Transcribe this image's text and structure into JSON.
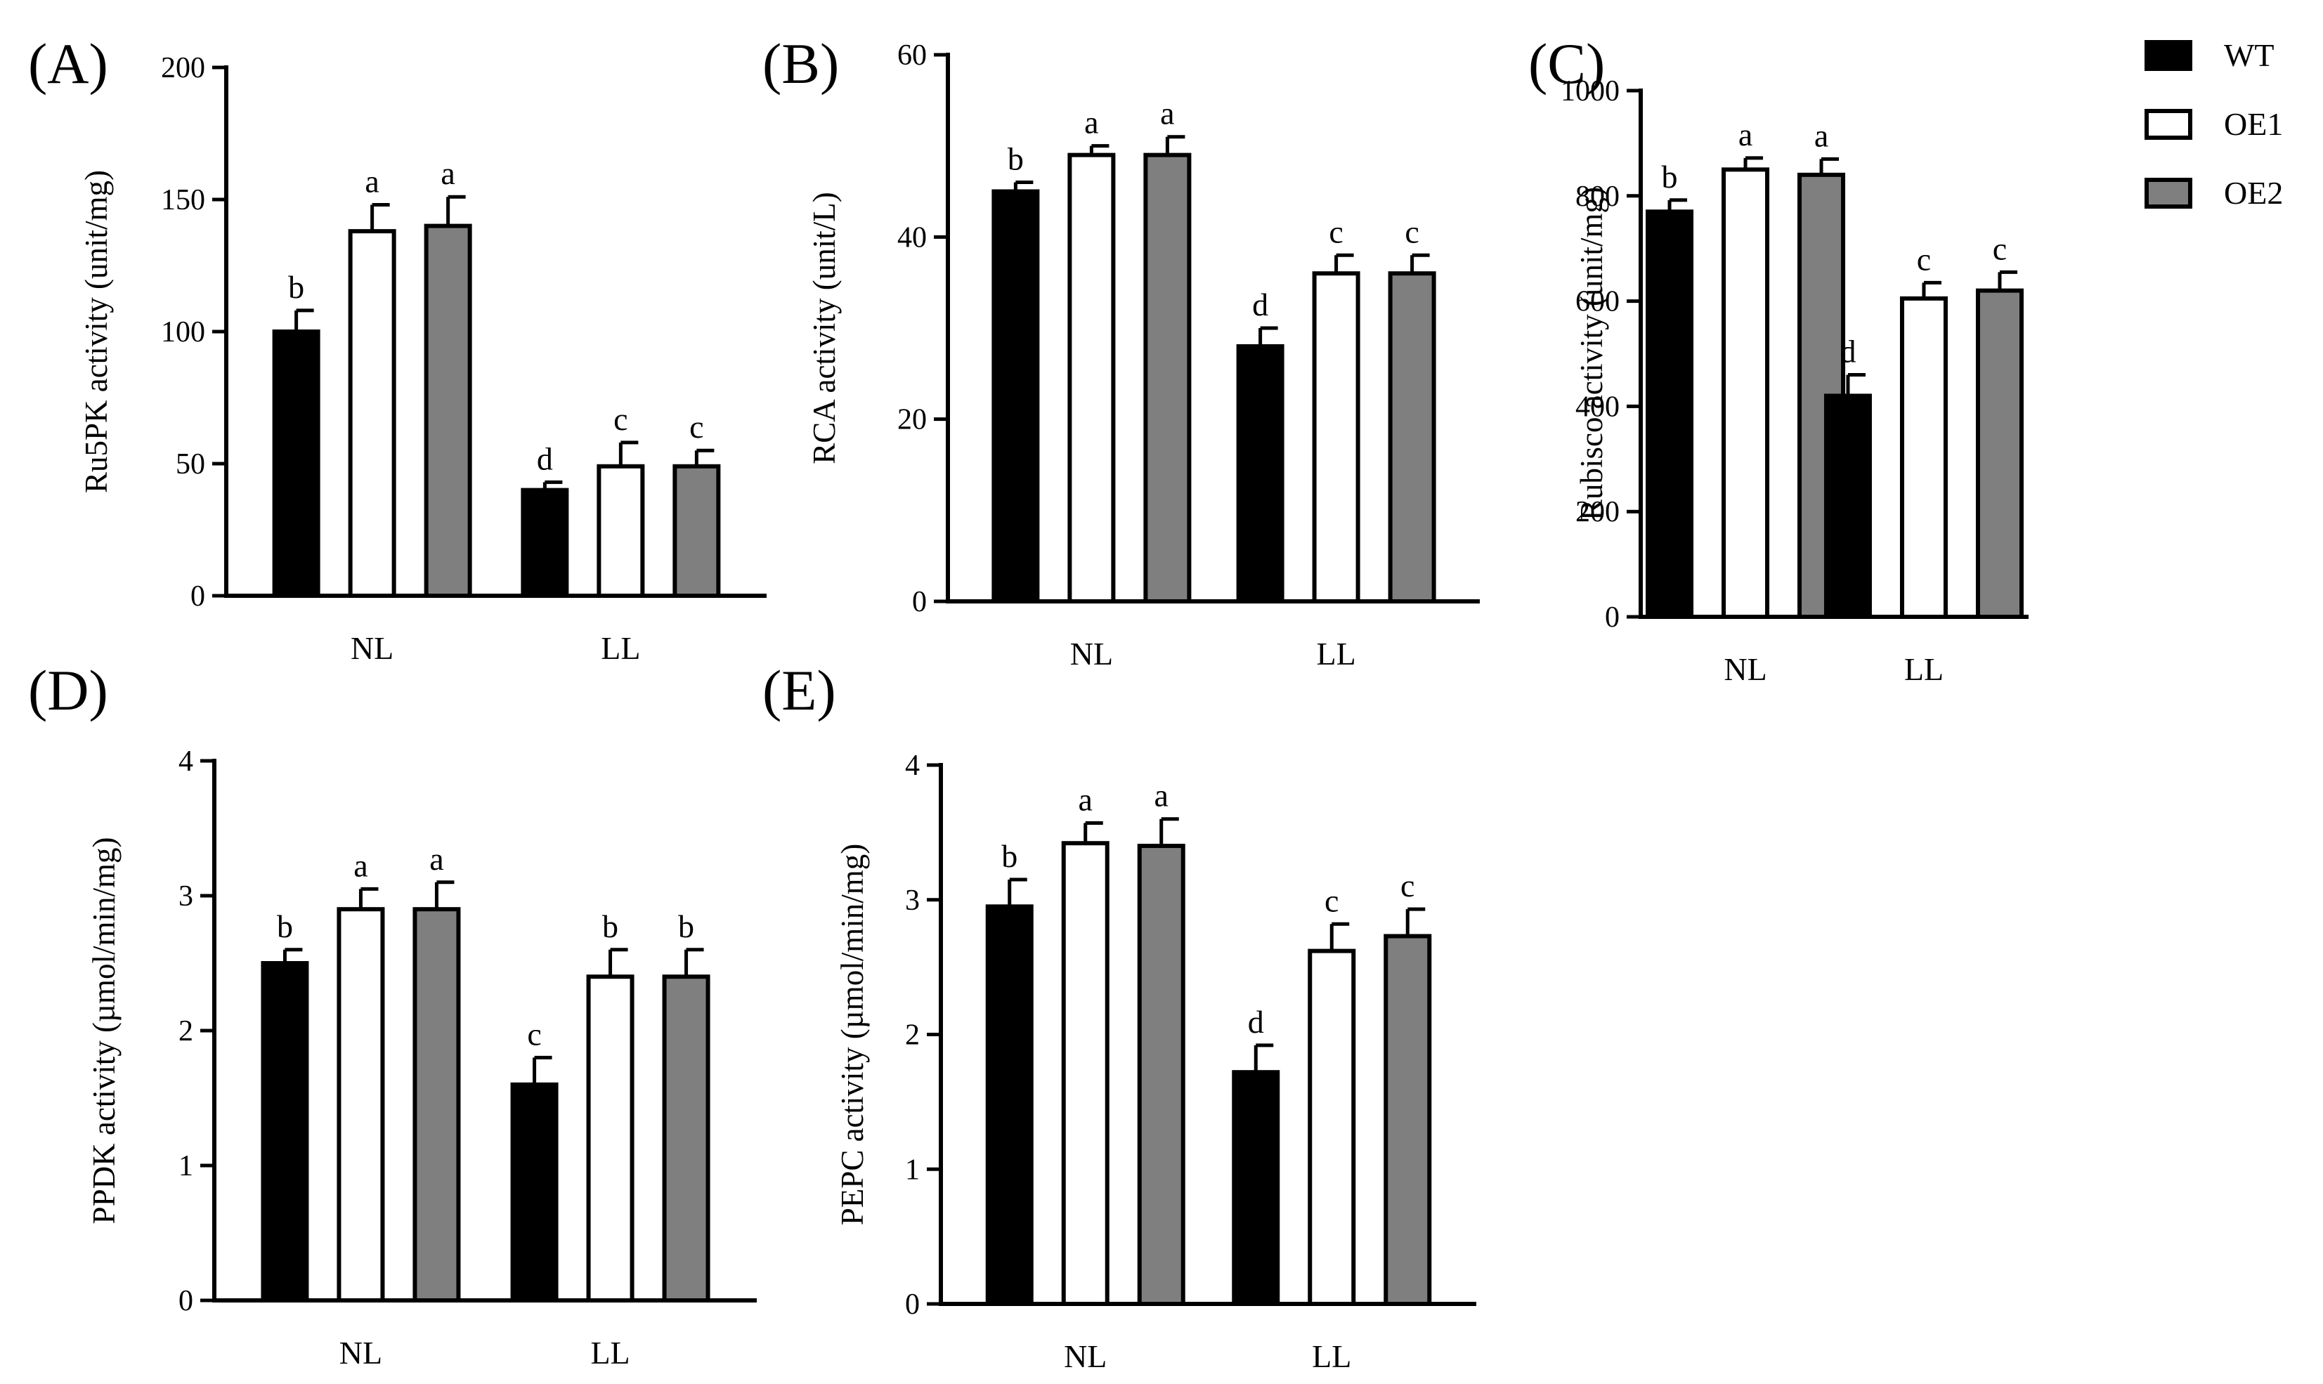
{
  "colors": {
    "WT": "#000000",
    "OE1": "#ffffff",
    "OE2": "#7f7f7f"
  },
  "legend": [
    "WT",
    "OE1",
    "OE2"
  ],
  "chart_data": [
    {
      "type": "bar",
      "panel": "(A)",
      "ylabel": "Ru5PK activity (unit/mg)",
      "categories": [
        "NL",
        "LL"
      ],
      "ylim": [
        0,
        200
      ],
      "yticks": [
        0,
        50,
        100,
        150,
        200
      ],
      "series": [
        {
          "name": "WT",
          "values": [
            100,
            40
          ],
          "errors": [
            8,
            3
          ],
          "letters": [
            "b",
            "d"
          ]
        },
        {
          "name": "OE1",
          "values": [
            138,
            49
          ],
          "errors": [
            10,
            9
          ],
          "letters": [
            "a",
            "c"
          ]
        },
        {
          "name": "OE2",
          "values": [
            140,
            49
          ],
          "errors": [
            11,
            6
          ],
          "letters": [
            "a",
            "c"
          ]
        }
      ]
    },
    {
      "type": "bar",
      "panel": "(B)",
      "ylabel": "RCA activity (unit/L)",
      "categories": [
        "NL",
        "LL"
      ],
      "ylim": [
        0,
        60
      ],
      "yticks": [
        0,
        20,
        40,
        60
      ],
      "series": [
        {
          "name": "WT",
          "values": [
            45,
            28
          ],
          "errors": [
            1,
            2
          ],
          "letters": [
            "b",
            "d"
          ]
        },
        {
          "name": "OE1",
          "values": [
            49,
            36
          ],
          "errors": [
            1,
            2
          ],
          "letters": [
            "a",
            "c"
          ]
        },
        {
          "name": "OE2",
          "values": [
            49,
            36
          ],
          "errors": [
            2,
            2
          ],
          "letters": [
            "a",
            "c"
          ]
        }
      ]
    },
    {
      "type": "bar",
      "panel": "(C)",
      "ylabel": "Rubisco activity (unit/mg)",
      "categories": [
        "NL",
        "LL"
      ],
      "ylim": [
        0,
        1000
      ],
      "yticks": [
        0,
        200,
        400,
        600,
        800,
        1000
      ],
      "series": [
        {
          "name": "WT",
          "values": [
            770,
            420
          ],
          "errors": [
            22,
            40
          ],
          "letters": [
            "b",
            "d"
          ]
        },
        {
          "name": "OE1",
          "values": [
            850,
            605
          ],
          "errors": [
            22,
            30
          ],
          "letters": [
            "a",
            "c"
          ]
        },
        {
          "name": "OE2",
          "values": [
            840,
            620
          ],
          "errors": [
            30,
            35
          ],
          "letters": [
            "a",
            "c"
          ]
        }
      ]
    },
    {
      "type": "bar",
      "panel": "(D)",
      "ylabel": "PPDK activity (µmol/min/mg)",
      "categories": [
        "NL",
        "LL"
      ],
      "ylim": [
        0,
        4
      ],
      "yticks": [
        0,
        1,
        2,
        3,
        4
      ],
      "series": [
        {
          "name": "WT",
          "values": [
            2.5,
            1.6
          ],
          "errors": [
            0.1,
            0.2
          ],
          "letters": [
            "b",
            "c"
          ]
        },
        {
          "name": "OE1",
          "values": [
            2.9,
            2.4
          ],
          "errors": [
            0.15,
            0.2
          ],
          "letters": [
            "a",
            "b"
          ]
        },
        {
          "name": "OE2",
          "values": [
            2.9,
            2.4
          ],
          "errors": [
            0.2,
            0.2
          ],
          "letters": [
            "a",
            "b"
          ]
        }
      ]
    },
    {
      "type": "bar",
      "panel": "(E)",
      "ylabel": "PEPC activity (µmol/min/mg)",
      "categories": [
        "NL",
        "LL"
      ],
      "ylim": [
        0,
        4
      ],
      "yticks": [
        0,
        1,
        2,
        3,
        4
      ],
      "series": [
        {
          "name": "WT",
          "values": [
            2.95,
            1.72
          ],
          "errors": [
            0.2,
            0.2
          ],
          "letters": [
            "b",
            "d"
          ]
        },
        {
          "name": "OE1",
          "values": [
            3.42,
            2.62
          ],
          "errors": [
            0.15,
            0.2
          ],
          "letters": [
            "a",
            "c"
          ]
        },
        {
          "name": "OE2",
          "values": [
            3.4,
            2.73
          ],
          "errors": [
            0.2,
            0.2
          ],
          "letters": [
            "a",
            "c"
          ]
        }
      ]
    }
  ]
}
